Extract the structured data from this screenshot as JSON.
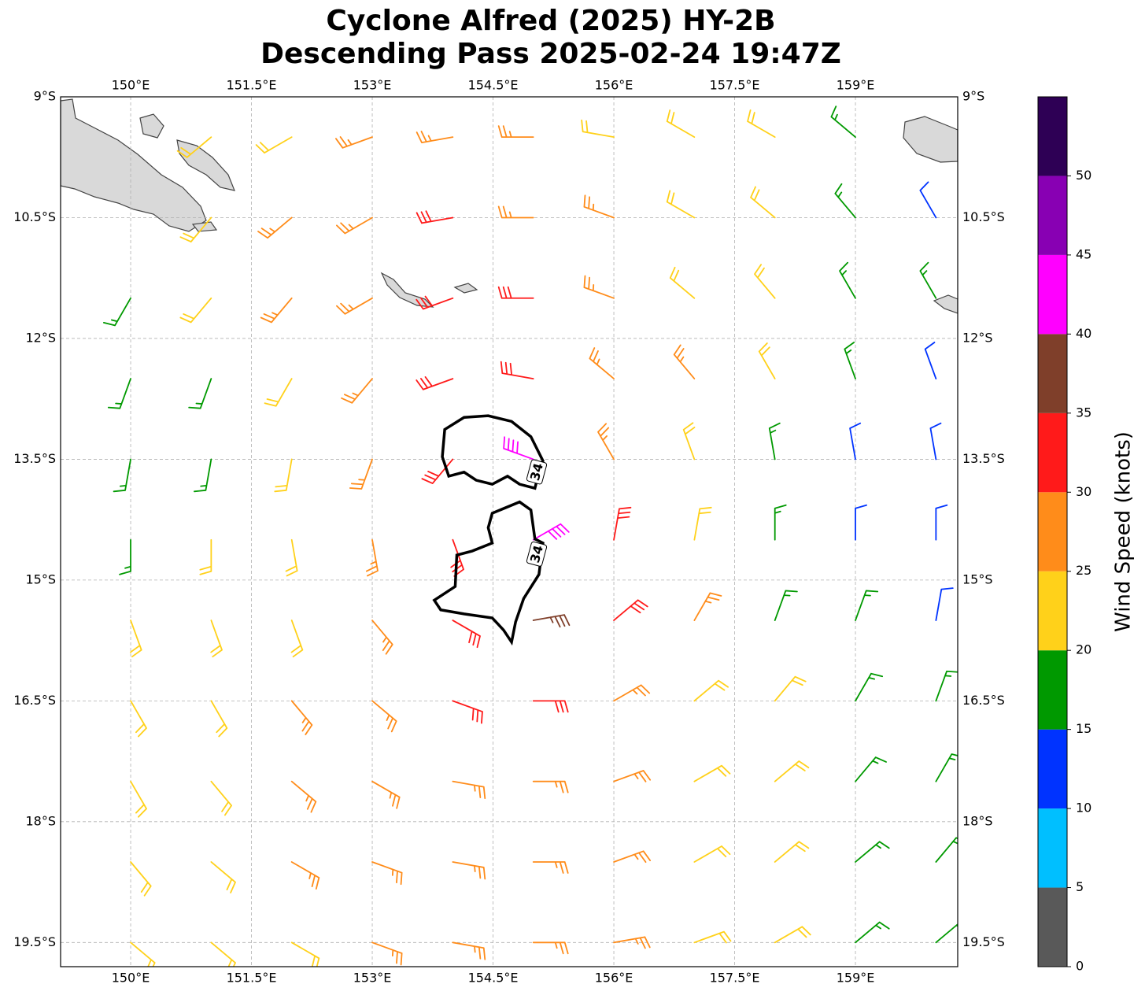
{
  "chart_data": {
    "type": "wind-barbs",
    "title": "Cyclone Alfred (2025) HY-2B",
    "subtitle": "Descending Pass 2025-02-24 19:47Z",
    "xlim": [
      149.13,
      160.27
    ],
    "ylim": [
      -19.8,
      -9
    ],
    "xticks": [
      {
        "value": 150,
        "label": "150°E"
      },
      {
        "value": 151.5,
        "label": "151.5°E"
      },
      {
        "value": 153,
        "label": "153°E"
      },
      {
        "value": 154.5,
        "label": "154.5°E"
      },
      {
        "value": 156,
        "label": "156°E"
      },
      {
        "value": 157.5,
        "label": "157.5°E"
      },
      {
        "value": 159,
        "label": "159°E"
      }
    ],
    "yticks": [
      {
        "value": -9,
        "label": "9°S"
      },
      {
        "value": -10.5,
        "label": "10.5°S"
      },
      {
        "value": -12,
        "label": "12°S"
      },
      {
        "value": -13.5,
        "label": "13.5°S"
      },
      {
        "value": -15,
        "label": "15°S"
      },
      {
        "value": -16.5,
        "label": "16.5°S"
      },
      {
        "value": -18,
        "label": "18°S"
      },
      {
        "value": -19.5,
        "label": "19.5°S"
      }
    ],
    "grid": true,
    "barbs": {
      "lon": [
        150,
        151,
        152,
        153,
        154,
        155,
        156,
        157,
        158,
        159,
        160
      ],
      "lat": [
        -9.5,
        -10.5,
        -11.5,
        -12.5,
        -13.5,
        -14.5,
        -15.5,
        -16.5,
        -17.5,
        -18.5,
        -19.5
      ],
      "speed": [
        [
          null,
          20,
          20,
          25,
          25,
          25,
          20,
          20,
          20,
          15,
          null
        ],
        [
          null,
          20,
          25,
          25,
          30,
          25,
          25,
          20,
          20,
          15,
          10
        ],
        [
          15,
          20,
          25,
          25,
          30,
          30,
          25,
          20,
          20,
          15,
          15
        ],
        [
          15,
          15,
          20,
          25,
          30,
          30,
          25,
          25,
          20,
          15,
          10
        ],
        [
          15,
          15,
          20,
          25,
          30,
          40,
          25,
          20,
          15,
          10,
          10
        ],
        [
          15,
          20,
          20,
          25,
          30,
          40,
          30,
          20,
          15,
          10,
          10
        ],
        [
          20,
          20,
          20,
          25,
          30,
          35,
          30,
          25,
          15,
          15,
          10
        ],
        [
          20,
          20,
          25,
          25,
          30,
          30,
          25,
          20,
          20,
          15,
          15
        ],
        [
          20,
          20,
          25,
          25,
          25,
          25,
          25,
          20,
          20,
          15,
          15
        ],
        [
          20,
          20,
          25,
          25,
          25,
          25,
          25,
          20,
          20,
          15,
          15
        ],
        [
          20,
          20,
          20,
          25,
          25,
          25,
          25,
          20,
          20,
          15,
          15
        ]
      ],
      "direction": [
        [
          null,
          230,
          240,
          250,
          260,
          270,
          280,
          300,
          300,
          310,
          null
        ],
        [
          null,
          220,
          230,
          240,
          260,
          270,
          290,
          300,
          310,
          320,
          330
        ],
        [
          210,
          220,
          220,
          240,
          250,
          270,
          290,
          310,
          320,
          330,
          330
        ],
        [
          200,
          200,
          210,
          220,
          250,
          280,
          310,
          320,
          330,
          340,
          340
        ],
        [
          190,
          190,
          190,
          200,
          220,
          290,
          330,
          340,
          350,
          350,
          350
        ],
        [
          180,
          180,
          170,
          170,
          160,
          60,
          10,
          10,
          0,
          0,
          0
        ],
        [
          160,
          160,
          160,
          140,
          120,
          80,
          50,
          30,
          20,
          20,
          10
        ],
        [
          150,
          150,
          140,
          130,
          110,
          90,
          60,
          50,
          40,
          30,
          20
        ],
        [
          150,
          140,
          130,
          120,
          100,
          90,
          70,
          60,
          50,
          40,
          30
        ],
        [
          140,
          130,
          120,
          110,
          100,
          90,
          70,
          60,
          50,
          50,
          40
        ],
        [
          130,
          130,
          120,
          110,
          100,
          90,
          80,
          70,
          60,
          50,
          50
        ]
      ]
    },
    "contour": {
      "label": "34",
      "level": 34,
      "paths": [
        {
          "lon": [
            153.9,
            154.14,
            154.44,
            154.73,
            154.97,
            155.12,
            155.07,
            155.02,
            154.83,
            154.68,
            154.49,
            154.29,
            154.14,
            153.95,
            153.87
          ],
          "lat": [
            -13.13,
            -12.98,
            -12.96,
            -13.03,
            -13.22,
            -13.52,
            -13.66,
            -13.86,
            -13.81,
            -13.71,
            -13.81,
            -13.76,
            -13.66,
            -13.71,
            -13.47
          ]
        },
        {
          "lon": [
            154.49,
            154.83,
            154.97,
            155.02,
            155.12,
            155.07,
            154.88,
            154.78,
            154.73,
            154.63,
            154.49,
            154.14,
            153.85,
            153.77,
            154.03,
            154.05,
            154.24,
            154.49,
            154.44
          ],
          "lat": [
            -14.17,
            -14.03,
            -14.13,
            -14.49,
            -14.54,
            -14.93,
            -15.23,
            -15.52,
            -15.77,
            -15.62,
            -15.47,
            -15.42,
            -15.37,
            -15.25,
            -15.08,
            -14.69,
            -14.64,
            -14.54,
            -14.35
          ]
        }
      ]
    },
    "colorbar": {
      "label": "Wind Speed (knots)",
      "bounds": [
        0,
        5,
        10,
        15,
        20,
        25,
        30,
        35,
        40,
        45,
        50,
        55
      ],
      "colors": [
        "#595959",
        "#00bfff",
        "#0033ff",
        "#009900",
        "#ffd11a",
        "#ff8c1a",
        "#ff1a1a",
        "#7f3f2a",
        "#ff00ff",
        "#8800b3",
        "#2e0055"
      ],
      "ticks": [
        0,
        5,
        10,
        15,
        20,
        25,
        30,
        35,
        40,
        45,
        50
      ]
    }
  }
}
